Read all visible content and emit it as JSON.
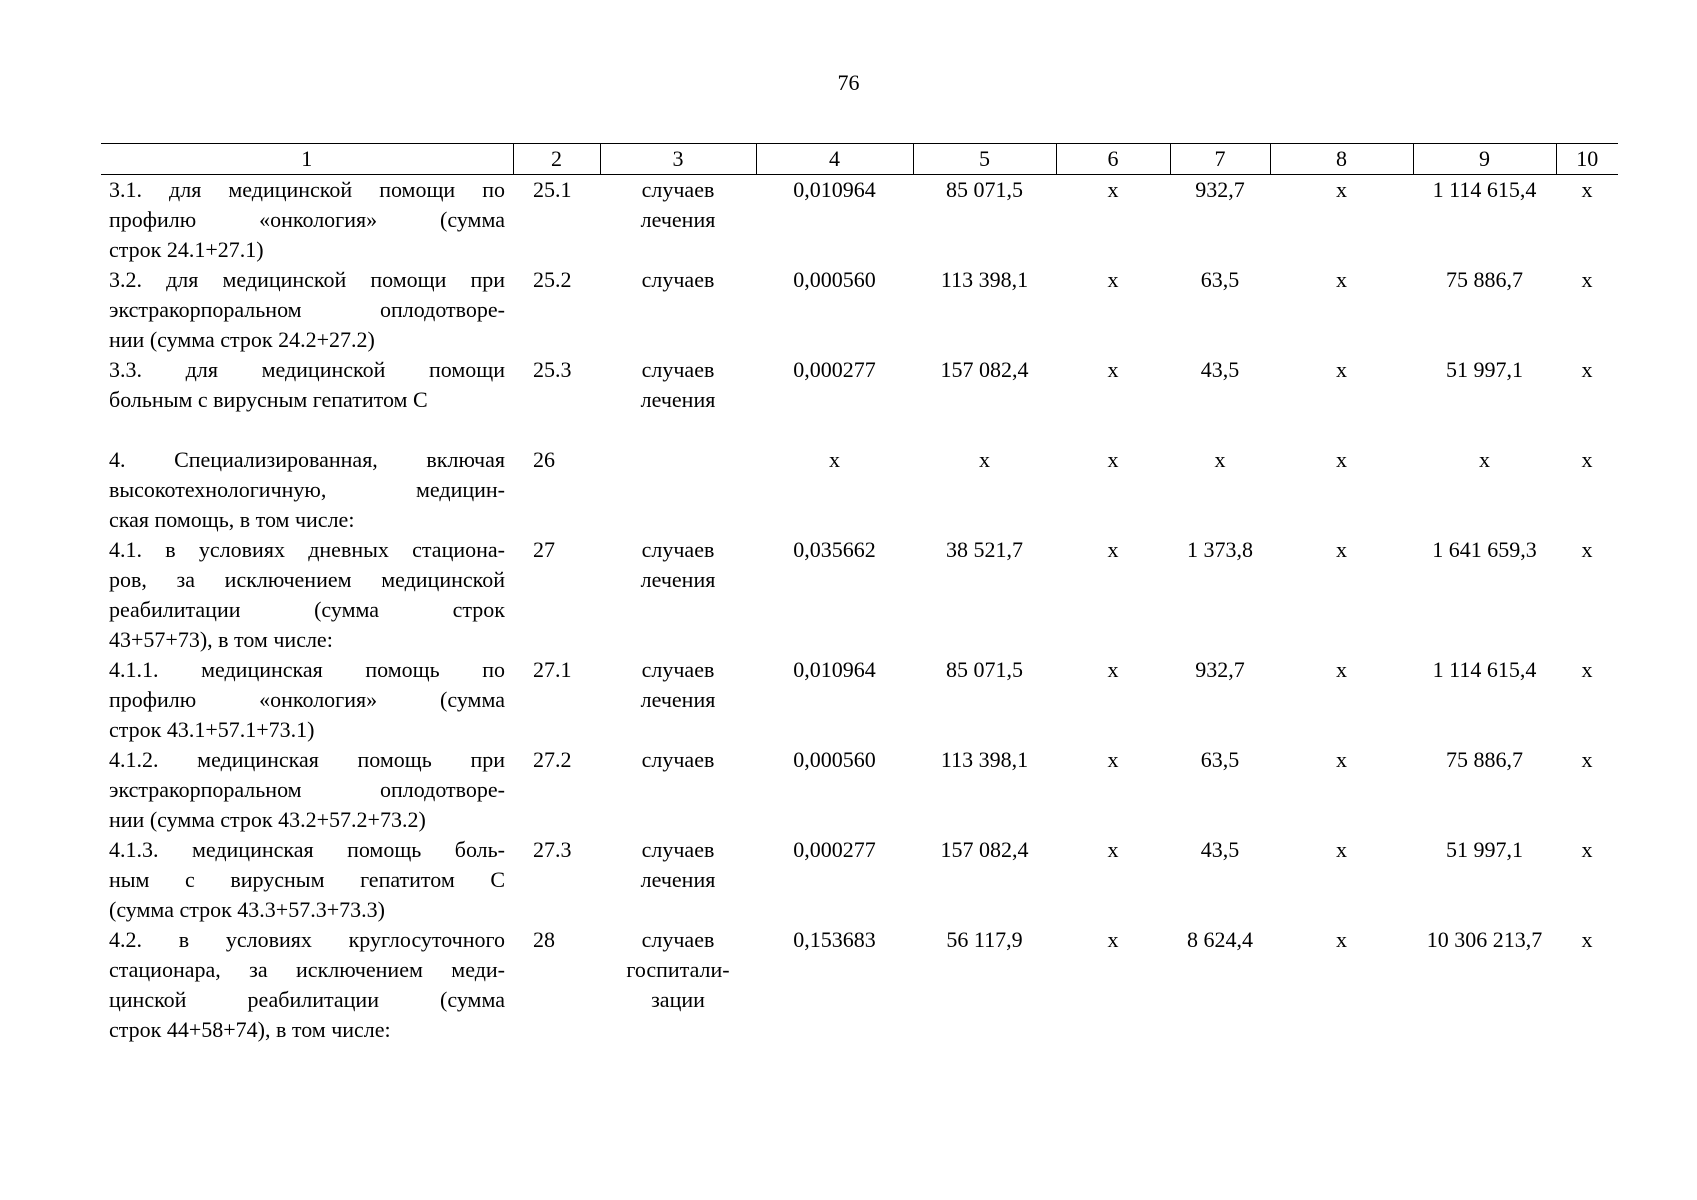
{
  "page_number": "76",
  "table": {
    "header": [
      "1",
      "2",
      "3",
      "4",
      "5",
      "6",
      "7",
      "8",
      "9",
      "10"
    ],
    "rows": [
      [
        [
          "3.1. для медицинской помощи по",
          "профилю «онкология» (сумма",
          "строк 24.1+27.1)"
        ],
        [
          "25.1"
        ],
        [
          "случаев",
          "лечения"
        ],
        [
          "0,010964"
        ],
        [
          "85 071,5"
        ],
        [
          "х"
        ],
        [
          "932,7"
        ],
        [
          "х"
        ],
        [
          "1 114 615,4"
        ],
        [
          "х"
        ]
      ],
      [
        [
          "3.2. для медицинской помощи при",
          "экстракорпоральном оплодотворе-",
          "нии (сумма строк 24.2+27.2)"
        ],
        [
          "25.2"
        ],
        [
          "случаев"
        ],
        [
          "0,000560"
        ],
        [
          "113 398,1"
        ],
        [
          "х"
        ],
        [
          "63,5"
        ],
        [
          "х"
        ],
        [
          "75 886,7"
        ],
        [
          "х"
        ]
      ],
      [
        [
          "3.3. для медицинской помощи",
          "больным с вирусным гепатитом С"
        ],
        [
          "25.3"
        ],
        [
          "случаев",
          "лечения"
        ],
        [
          "0,000277"
        ],
        [
          "157 082,4"
        ],
        [
          "х"
        ],
        [
          "43,5"
        ],
        [
          "х"
        ],
        [
          "51 997,1"
        ],
        [
          "х"
        ]
      ],
      [
        [
          "4. Специализированная, включая",
          "высокотехнологичную, медицин-",
          "ская помощь, в том числе:"
        ],
        [
          "26"
        ],
        [],
        [
          "х"
        ],
        [
          "х"
        ],
        [
          "х"
        ],
        [
          "х"
        ],
        [
          "х"
        ],
        [
          "х"
        ],
        [
          "х"
        ]
      ],
      [
        [
          "4.1. в условиях дневных стациона-",
          "ров, за исключением медицинской",
          "реабилитации (сумма строк",
          "43+57+73), в том числе:"
        ],
        [
          "27"
        ],
        [
          "случаев",
          "лечения"
        ],
        [
          "0,035662"
        ],
        [
          "38 521,7"
        ],
        [
          "х"
        ],
        [
          "1 373,8"
        ],
        [
          "х"
        ],
        [
          "1 641 659,3"
        ],
        [
          "х"
        ]
      ],
      [
        [
          "4.1.1. медицинская помощь по",
          "профилю «онкология» (сумма",
          "строк 43.1+57.1+73.1)"
        ],
        [
          "27.1"
        ],
        [
          "случаев",
          "лечения"
        ],
        [
          "0,010964"
        ],
        [
          "85 071,5"
        ],
        [
          "х"
        ],
        [
          "932,7"
        ],
        [
          "х"
        ],
        [
          "1 114 615,4"
        ],
        [
          "х"
        ]
      ],
      [
        [
          "4.1.2. медицинская помощь при",
          "экстракорпоральном оплодотворе-",
          "нии (сумма строк 43.2+57.2+73.2)"
        ],
        [
          "27.2"
        ],
        [
          "случаев"
        ],
        [
          "0,000560"
        ],
        [
          "113 398,1"
        ],
        [
          "х"
        ],
        [
          "63,5"
        ],
        [
          "х"
        ],
        [
          "75 886,7"
        ],
        [
          "х"
        ]
      ],
      [
        [
          "4.1.3. медицинская помощь боль-",
          "ным с вирусным гепатитом С",
          "(сумма строк 43.3+57.3+73.3)"
        ],
        [
          "27.3"
        ],
        [
          "случаев",
          "лечения"
        ],
        [
          "0,000277"
        ],
        [
          "157 082,4"
        ],
        [
          "х"
        ],
        [
          "43,5"
        ],
        [
          "х"
        ],
        [
          "51 997,1"
        ],
        [
          "х"
        ]
      ],
      [
        [
          "4.2. в условиях круглосуточного",
          "стационара, за исключением меди-",
          "цинской реабилитации (сумма",
          "строк 44+58+74), в том числе:"
        ],
        [
          "28"
        ],
        [
          "случаев",
          "госпитали-",
          "зации"
        ],
        [
          "0,153683"
        ],
        [
          "56 117,9"
        ],
        [
          "х"
        ],
        [
          "8 624,4"
        ],
        [
          "х"
        ],
        [
          "10 306 213,7"
        ],
        [
          "х"
        ]
      ]
    ]
  }
}
